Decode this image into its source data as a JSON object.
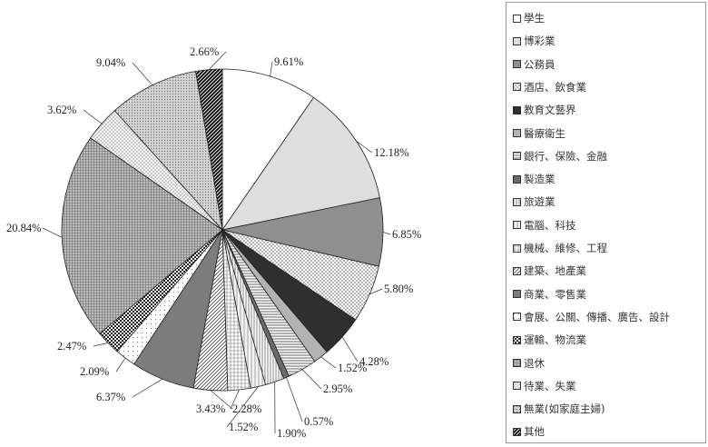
{
  "chart_data": {
    "type": "pie",
    "title": "",
    "start_angle_deg": 90,
    "direction": "clockwise",
    "legend_position": "right",
    "slices": [
      {
        "label": "學生",
        "value": 9.61,
        "pct": "9.61%",
        "pattern": "white"
      },
      {
        "label": "博彩業",
        "value": 12.18,
        "pct": "12.18%",
        "pattern": "lightgray"
      },
      {
        "label": "公務員",
        "value": 6.85,
        "pct": "6.85%",
        "pattern": "midgray"
      },
      {
        "label": "酒店、飲食業",
        "value": 5.8,
        "pct": "5.80%",
        "pattern": "dots"
      },
      {
        "label": "教育文藝界",
        "value": 4.28,
        "pct": "4.28%",
        "pattern": "dark"
      },
      {
        "label": "醫療衛生",
        "value": 1.52,
        "pct": "1.52%",
        "pattern": "gray2"
      },
      {
        "label": "銀行、保險、金融",
        "value": 2.95,
        "pct": "2.95%",
        "pattern": "hlines"
      },
      {
        "label": "製造業",
        "value": 0.57,
        "pct": "0.57%",
        "pattern": "darkgray"
      },
      {
        "label": "旅遊業",
        "value": 1.9,
        "pct": "1.90%",
        "pattern": "vlines"
      },
      {
        "label": "電腦、科技",
        "value": 1.52,
        "pct": "1.52%",
        "pattern": "vlines2"
      },
      {
        "label": "機械、維修、工程",
        "value": 2.28,
        "pct": "2.28%",
        "pattern": "grid"
      },
      {
        "label": "建築、地產業",
        "value": 3.43,
        "pct": "3.43%",
        "pattern": "diag"
      },
      {
        "label": "商業、零售業",
        "value": 6.37,
        "pct": "6.37%",
        "pattern": "midgray2"
      },
      {
        "label": "會展、公關、傳播、廣告、設計",
        "value": 2.09,
        "pct": "2.09%",
        "pattern": "lightdots"
      },
      {
        "label": "運輸、物流業",
        "value": 2.47,
        "pct": "2.47%",
        "pattern": "checker"
      },
      {
        "label": "退休",
        "value": 20.84,
        "pct": "20.84%",
        "pattern": "finegrid"
      },
      {
        "label": "待業、失業",
        "value": 3.62,
        "pct": "3.62%",
        "pattern": "sparsedots"
      },
      {
        "label": "無業(如家庭主婦)",
        "value": 9.04,
        "pct": "9.04%",
        "pattern": "densedots"
      },
      {
        "label": "其他",
        "value": 2.66,
        "pct": "2.66%",
        "pattern": "blackdiag"
      }
    ]
  }
}
